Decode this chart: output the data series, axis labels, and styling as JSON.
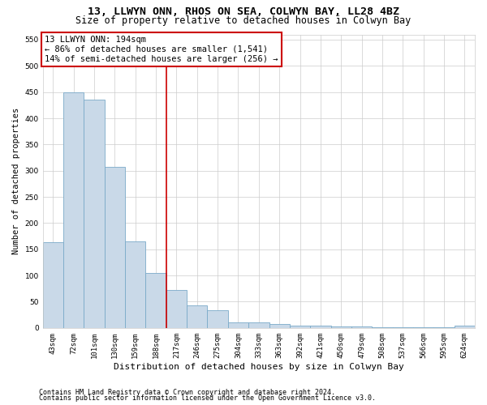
{
  "title1": "13, LLWYN ONN, RHOS ON SEA, COLWYN BAY, LL28 4BZ",
  "title2": "Size of property relative to detached houses in Colwyn Bay",
  "xlabel": "Distribution of detached houses by size in Colwyn Bay",
  "ylabel": "Number of detached properties",
  "categories": [
    "43sqm",
    "72sqm",
    "101sqm",
    "130sqm",
    "159sqm",
    "188sqm",
    "217sqm",
    "246sqm",
    "275sqm",
    "304sqm",
    "333sqm",
    "363sqm",
    "392sqm",
    "421sqm",
    "450sqm",
    "479sqm",
    "508sqm",
    "537sqm",
    "566sqm",
    "595sqm",
    "624sqm"
  ],
  "values": [
    163,
    450,
    435,
    307,
    165,
    105,
    73,
    43,
    33,
    10,
    10,
    8,
    5,
    4,
    3,
    3,
    2,
    2,
    1,
    1,
    4
  ],
  "bar_color": "#c9d9e8",
  "bar_edge_color": "#7aaac8",
  "red_line_index": 5,
  "annotation_text": "13 LLWYN ONN: 194sqm\n← 86% of detached houses are smaller (1,541)\n14% of semi-detached houses are larger (256) →",
  "annotation_box_color": "#ffffff",
  "annotation_box_edge": "#cc0000",
  "red_line_color": "#cc0000",
  "grid_color": "#cccccc",
  "ylim": [
    0,
    560
  ],
  "yticks": [
    0,
    50,
    100,
    150,
    200,
    250,
    300,
    350,
    400,
    450,
    500,
    550
  ],
  "footer1": "Contains HM Land Registry data © Crown copyright and database right 2024.",
  "footer2": "Contains public sector information licensed under the Open Government Licence v3.0.",
  "title1_fontsize": 9.5,
  "title2_fontsize": 8.5,
  "xlabel_fontsize": 8,
  "ylabel_fontsize": 7.5,
  "tick_fontsize": 6.5,
  "footer_fontsize": 6,
  "annotation_fontsize": 7.5
}
